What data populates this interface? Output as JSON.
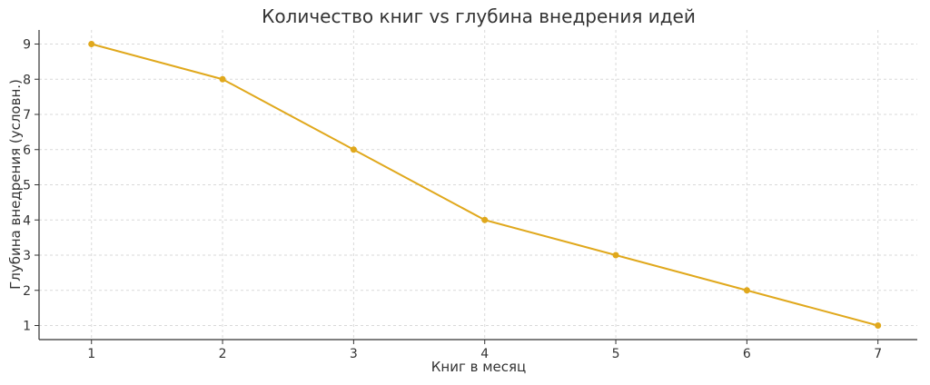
{
  "chart_data": {
    "type": "line",
    "title": "Количество книг vs глубина внедрения идей",
    "xlabel": "Книг в месяц",
    "ylabel": "Глубина внедрения (условн.)",
    "x": [
      1,
      2,
      3,
      4,
      5,
      6,
      7
    ],
    "series": [
      {
        "values": [
          9,
          8,
          6,
          4,
          3,
          2,
          1
        ],
        "color": "#e0a81c",
        "marker": "circle"
      }
    ],
    "xticks": [
      1,
      2,
      3,
      4,
      5,
      6,
      7
    ],
    "yticks": [
      1,
      2,
      3,
      4,
      5,
      6,
      7,
      8,
      9
    ],
    "xlim": [
      0.6,
      7.3
    ],
    "ylim": [
      0.6,
      9.4
    ],
    "grid": true,
    "legend": "none"
  }
}
